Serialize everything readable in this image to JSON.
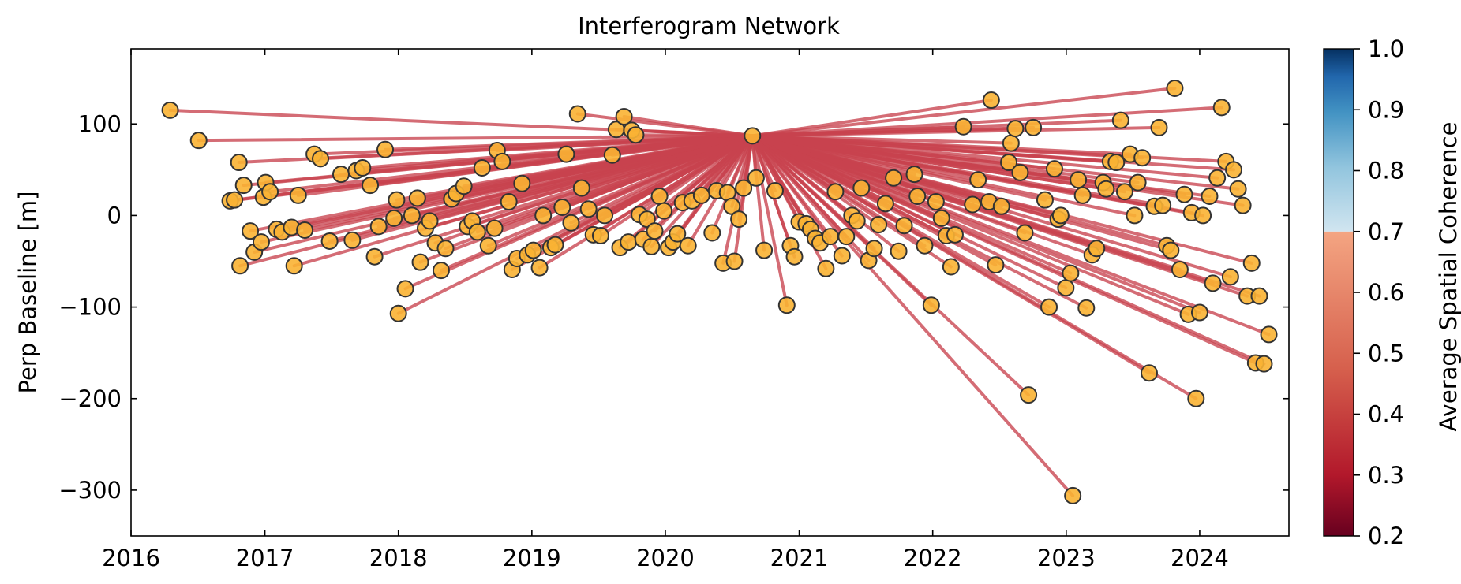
{
  "chart_data": {
    "type": "scatter",
    "title": "Interferogram Network",
    "xlabel": "",
    "ylabel": "Perp Baseline [m]",
    "x_axis": "date",
    "xlim": [
      "2016-01-01",
      "2024-09-01"
    ],
    "ylim": [
      -350,
      182
    ],
    "x_ticks": [
      "2016",
      "2017",
      "2018",
      "2019",
      "2020",
      "2021",
      "2022",
      "2023",
      "2024"
    ],
    "y_ticks": [
      -300,
      -200,
      -100,
      0,
      100
    ],
    "reference": {
      "date": "2020-08-26",
      "baseline": 87
    },
    "points": [
      {
        "date": "2016-04-17",
        "baseline": 115
      },
      {
        "date": "2016-07-04",
        "baseline": 82
      },
      {
        "date": "2016-09-28",
        "baseline": 16
      },
      {
        "date": "2016-10-10",
        "baseline": 17
      },
      {
        "date": "2016-10-22",
        "baseline": 58
      },
      {
        "date": "2016-10-25",
        "baseline": -55
      },
      {
        "date": "2016-11-04",
        "baseline": 33
      },
      {
        "date": "2016-11-22",
        "baseline": -17
      },
      {
        "date": "2016-12-03",
        "baseline": -40
      },
      {
        "date": "2016-12-22",
        "baseline": -29
      },
      {
        "date": "2016-12-28",
        "baseline": 20
      },
      {
        "date": "2017-01-03",
        "baseline": 36
      },
      {
        "date": "2017-01-15",
        "baseline": 26
      },
      {
        "date": "2017-02-02",
        "baseline": -15
      },
      {
        "date": "2017-02-17",
        "baseline": -18
      },
      {
        "date": "2017-03-15",
        "baseline": -13
      },
      {
        "date": "2017-03-22",
        "baseline": -55
      },
      {
        "date": "2017-04-02",
        "baseline": 22
      },
      {
        "date": "2017-04-20",
        "baseline": -16
      },
      {
        "date": "2017-05-16",
        "baseline": 67
      },
      {
        "date": "2017-06-02",
        "baseline": 62
      },
      {
        "date": "2017-06-27",
        "baseline": -28
      },
      {
        "date": "2017-07-28",
        "baseline": 45
      },
      {
        "date": "2017-08-28",
        "baseline": -27
      },
      {
        "date": "2017-09-08",
        "baseline": 49
      },
      {
        "date": "2017-09-25",
        "baseline": 52
      },
      {
        "date": "2017-10-16",
        "baseline": 33
      },
      {
        "date": "2017-10-28",
        "baseline": -45
      },
      {
        "date": "2017-11-08",
        "baseline": -12
      },
      {
        "date": "2017-11-26",
        "baseline": 72
      },
      {
        "date": "2017-12-20",
        "baseline": -3
      },
      {
        "date": "2017-12-27",
        "baseline": 17
      },
      {
        "date": "2018-01-01",
        "baseline": -107
      },
      {
        "date": "2018-01-20",
        "baseline": -80
      },
      {
        "date": "2018-02-07",
        "baseline": 0
      },
      {
        "date": "2018-02-22",
        "baseline": 19
      },
      {
        "date": "2018-03-02",
        "baseline": -51
      },
      {
        "date": "2018-03-16",
        "baseline": -14
      },
      {
        "date": "2018-03-28",
        "baseline": -6
      },
      {
        "date": "2018-04-12",
        "baseline": -30
      },
      {
        "date": "2018-04-28",
        "baseline": -60
      },
      {
        "date": "2018-05-10",
        "baseline": -36
      },
      {
        "date": "2018-05-27",
        "baseline": 18
      },
      {
        "date": "2018-06-08",
        "baseline": 24
      },
      {
        "date": "2018-06-29",
        "baseline": 32
      },
      {
        "date": "2018-07-09",
        "baseline": -12
      },
      {
        "date": "2018-07-22",
        "baseline": -6
      },
      {
        "date": "2018-08-05",
        "baseline": -18
      },
      {
        "date": "2018-08-18",
        "baseline": 52
      },
      {
        "date": "2018-09-04",
        "baseline": -33
      },
      {
        "date": "2018-09-21",
        "baseline": -14
      },
      {
        "date": "2018-09-28",
        "baseline": 71
      },
      {
        "date": "2018-10-12",
        "baseline": 59
      },
      {
        "date": "2018-10-30",
        "baseline": 15
      },
      {
        "date": "2018-11-08",
        "baseline": -59
      },
      {
        "date": "2018-11-21",
        "baseline": -47
      },
      {
        "date": "2018-12-05",
        "baseline": 35
      },
      {
        "date": "2018-12-20",
        "baseline": -43
      },
      {
        "date": "2019-01-05",
        "baseline": -38
      },
      {
        "date": "2019-01-22",
        "baseline": -57
      },
      {
        "date": "2019-02-01",
        "baseline": 0
      },
      {
        "date": "2019-02-22",
        "baseline": -35
      },
      {
        "date": "2019-03-06",
        "baseline": -32
      },
      {
        "date": "2019-03-25",
        "baseline": 9
      },
      {
        "date": "2019-04-05",
        "baseline": 67
      },
      {
        "date": "2019-04-18",
        "baseline": -8
      },
      {
        "date": "2019-05-06",
        "baseline": 111
      },
      {
        "date": "2019-05-17",
        "baseline": 30
      },
      {
        "date": "2019-06-05",
        "baseline": 7
      },
      {
        "date": "2019-06-18",
        "baseline": -21
      },
      {
        "date": "2019-07-08",
        "baseline": -22
      },
      {
        "date": "2019-07-19",
        "baseline": 0
      },
      {
        "date": "2019-08-09",
        "baseline": 66
      },
      {
        "date": "2019-08-20",
        "baseline": 94
      },
      {
        "date": "2019-08-30",
        "baseline": -35
      },
      {
        "date": "2019-09-10",
        "baseline": 108
      },
      {
        "date": "2019-09-22",
        "baseline": -29
      },
      {
        "date": "2019-10-01",
        "baseline": 93
      },
      {
        "date": "2019-10-12",
        "baseline": 88
      },
      {
        "date": "2019-10-22",
        "baseline": 1
      },
      {
        "date": "2019-11-01",
        "baseline": -26
      },
      {
        "date": "2019-11-12",
        "baseline": -4
      },
      {
        "date": "2019-11-24",
        "baseline": -34
      },
      {
        "date": "2019-12-03",
        "baseline": -17
      },
      {
        "date": "2019-12-16",
        "baseline": 21
      },
      {
        "date": "2019-12-28",
        "baseline": 5
      },
      {
        "date": "2020-01-10",
        "baseline": -35
      },
      {
        "date": "2020-01-22",
        "baseline": -29
      },
      {
        "date": "2020-02-03",
        "baseline": -20
      },
      {
        "date": "2020-02-17",
        "baseline": 14
      },
      {
        "date": "2020-03-03",
        "baseline": -33
      },
      {
        "date": "2020-03-14",
        "baseline": 16
      },
      {
        "date": "2020-04-09",
        "baseline": 22
      },
      {
        "date": "2020-05-08",
        "baseline": -19
      },
      {
        "date": "2020-05-20",
        "baseline": 27
      },
      {
        "date": "2020-06-07",
        "baseline": -52
      },
      {
        "date": "2020-06-19",
        "baseline": 25
      },
      {
        "date": "2020-07-01",
        "baseline": 10
      },
      {
        "date": "2020-07-08",
        "baseline": -50
      },
      {
        "date": "2020-07-20",
        "baseline": -4
      },
      {
        "date": "2020-08-02",
        "baseline": 30
      },
      {
        "date": "2020-09-05",
        "baseline": 41
      },
      {
        "date": "2020-09-27",
        "baseline": -38
      },
      {
        "date": "2020-10-27",
        "baseline": 27
      },
      {
        "date": "2020-11-28",
        "baseline": -98
      },
      {
        "date": "2020-12-08",
        "baseline": -33
      },
      {
        "date": "2020-12-19",
        "baseline": -45
      },
      {
        "date": "2021-01-01",
        "baseline": -7
      },
      {
        "date": "2021-01-20",
        "baseline": -9
      },
      {
        "date": "2021-02-01",
        "baseline": -15
      },
      {
        "date": "2021-02-14",
        "baseline": -25
      },
      {
        "date": "2021-02-27",
        "baseline": -30
      },
      {
        "date": "2021-03-15",
        "baseline": -58
      },
      {
        "date": "2021-03-27",
        "baseline": -23
      },
      {
        "date": "2021-04-10",
        "baseline": 26
      },
      {
        "date": "2021-04-28",
        "baseline": -44
      },
      {
        "date": "2021-05-10",
        "baseline": -23
      },
      {
        "date": "2021-05-25",
        "baseline": 0
      },
      {
        "date": "2021-06-08",
        "baseline": -6
      },
      {
        "date": "2021-06-20",
        "baseline": 30
      },
      {
        "date": "2021-07-10",
        "baseline": -49
      },
      {
        "date": "2021-07-25",
        "baseline": -36
      },
      {
        "date": "2021-08-06",
        "baseline": -10
      },
      {
        "date": "2021-08-25",
        "baseline": 13
      },
      {
        "date": "2021-09-16",
        "baseline": 41
      },
      {
        "date": "2021-09-30",
        "baseline": -39
      },
      {
        "date": "2021-10-15",
        "baseline": -11
      },
      {
        "date": "2021-11-12",
        "baseline": 45
      },
      {
        "date": "2021-11-20",
        "baseline": 21
      },
      {
        "date": "2021-12-10",
        "baseline": -33
      },
      {
        "date": "2021-12-28",
        "baseline": -98
      },
      {
        "date": "2022-01-10",
        "baseline": 15
      },
      {
        "date": "2022-01-25",
        "baseline": -3
      },
      {
        "date": "2022-02-07",
        "baseline": -22
      },
      {
        "date": "2022-02-20",
        "baseline": -56
      },
      {
        "date": "2022-03-03",
        "baseline": -21
      },
      {
        "date": "2022-03-26",
        "baseline": 97
      },
      {
        "date": "2022-04-20",
        "baseline": 12
      },
      {
        "date": "2022-05-05",
        "baseline": 39
      },
      {
        "date": "2022-06-04",
        "baseline": 15
      },
      {
        "date": "2022-06-10",
        "baseline": 126
      },
      {
        "date": "2022-06-22",
        "baseline": -54
      },
      {
        "date": "2022-07-08",
        "baseline": 10
      },
      {
        "date": "2022-07-28",
        "baseline": 58
      },
      {
        "date": "2022-08-03",
        "baseline": 79
      },
      {
        "date": "2022-08-15",
        "baseline": 95
      },
      {
        "date": "2022-08-28",
        "baseline": 47
      },
      {
        "date": "2022-09-10",
        "baseline": -19
      },
      {
        "date": "2022-09-20",
        "baseline": -196
      },
      {
        "date": "2022-10-03",
        "baseline": 96
      },
      {
        "date": "2022-11-04",
        "baseline": 17
      },
      {
        "date": "2022-11-15",
        "baseline": -100
      },
      {
        "date": "2022-11-30",
        "baseline": 51
      },
      {
        "date": "2022-12-10",
        "baseline": -4
      },
      {
        "date": "2022-12-17",
        "baseline": 0
      },
      {
        "date": "2022-12-31",
        "baseline": -79
      },
      {
        "date": "2023-01-13",
        "baseline": -63
      },
      {
        "date": "2023-01-19",
        "baseline": -306
      },
      {
        "date": "2023-02-03",
        "baseline": 39
      },
      {
        "date": "2023-02-15",
        "baseline": 22
      },
      {
        "date": "2023-02-25",
        "baseline": -101
      },
      {
        "date": "2023-03-13",
        "baseline": -43
      },
      {
        "date": "2023-03-25",
        "baseline": -36
      },
      {
        "date": "2023-04-12",
        "baseline": 36
      },
      {
        "date": "2023-04-20",
        "baseline": 29
      },
      {
        "date": "2023-05-02",
        "baseline": 59
      },
      {
        "date": "2023-05-18",
        "baseline": 58
      },
      {
        "date": "2023-05-30",
        "baseline": 104
      },
      {
        "date": "2023-06-10",
        "baseline": 26
      },
      {
        "date": "2023-06-25",
        "baseline": 67
      },
      {
        "date": "2023-07-07",
        "baseline": 0
      },
      {
        "date": "2023-07-16",
        "baseline": 36
      },
      {
        "date": "2023-07-28",
        "baseline": 63
      },
      {
        "date": "2023-08-16",
        "baseline": -172
      },
      {
        "date": "2023-08-30",
        "baseline": 10
      },
      {
        "date": "2023-09-12",
        "baseline": 96
      },
      {
        "date": "2023-09-22",
        "baseline": 11
      },
      {
        "date": "2023-10-03",
        "baseline": -33
      },
      {
        "date": "2023-10-14",
        "baseline": -38
      },
      {
        "date": "2023-10-25",
        "baseline": 139
      },
      {
        "date": "2023-11-08",
        "baseline": -59
      },
      {
        "date": "2023-11-20",
        "baseline": 23
      },
      {
        "date": "2023-12-01",
        "baseline": -108
      },
      {
        "date": "2023-12-10",
        "baseline": 3
      },
      {
        "date": "2023-12-22",
        "baseline": -200
      },
      {
        "date": "2024-01-01",
        "baseline": -106
      },
      {
        "date": "2024-01-10",
        "baseline": 0
      },
      {
        "date": "2024-01-28",
        "baseline": 21
      },
      {
        "date": "2024-02-06",
        "baseline": -74
      },
      {
        "date": "2024-02-18",
        "baseline": 41
      },
      {
        "date": "2024-03-01",
        "baseline": 118
      },
      {
        "date": "2024-03-13",
        "baseline": 59
      },
      {
        "date": "2024-03-25",
        "baseline": -67
      },
      {
        "date": "2024-04-03",
        "baseline": 50
      },
      {
        "date": "2024-04-15",
        "baseline": 29
      },
      {
        "date": "2024-04-28",
        "baseline": 11
      },
      {
        "date": "2024-05-10",
        "baseline": -88
      },
      {
        "date": "2024-05-22",
        "baseline": -52
      },
      {
        "date": "2024-06-02",
        "baseline": -161
      },
      {
        "date": "2024-06-12",
        "baseline": -88
      },
      {
        "date": "2024-06-25",
        "baseline": -162
      },
      {
        "date": "2024-07-08",
        "baseline": -130
      }
    ],
    "colorbar": {
      "label": "Average Spatial Coherence",
      "range": [
        0.2,
        1.0
      ],
      "ticks": [
        "0.2",
        "0.3",
        "0.4",
        "0.5",
        "0.6",
        "0.7",
        "0.8",
        "0.9",
        "1.0"
      ],
      "colormap": "RdBu",
      "threshold": 0.7
    },
    "edge_color": "#c8434e",
    "node_face_color": "#f9b233",
    "node_edge_color": "#333333"
  }
}
